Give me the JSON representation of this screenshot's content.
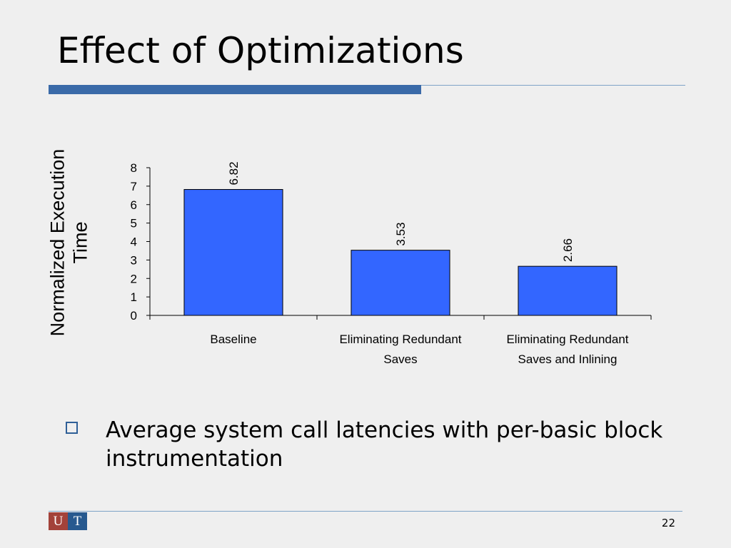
{
  "slide": {
    "title": "Effect of Optimizations",
    "bullet": "Average system call latencies with per-basic block instrumentation",
    "page_number": "22",
    "logo_left": "U",
    "logo_right": "T",
    "colors": {
      "accent_rule": "#3a6aa8",
      "thin_rule": "#7fa3c7",
      "bullet_border": "#2f5f97",
      "logo_left": "#a3423a",
      "logo_right": "#27598f"
    }
  },
  "chart_data": {
    "type": "bar",
    "categories": [
      [
        "Baseline"
      ],
      [
        "Eliminating Redundant",
        "Saves"
      ],
      [
        "Eliminating Redundant",
        "Saves and Inlining"
      ]
    ],
    "values": [
      6.82,
      3.53,
      2.66
    ],
    "data_labels": [
      "6.82",
      "3.53",
      "2.66"
    ],
    "ylabel": [
      "Normalized Execution",
      "Time"
    ],
    "ylim": [
      0,
      8
    ],
    "yticks": [
      0,
      1,
      2,
      3,
      4,
      5,
      6,
      7,
      8
    ],
    "grid": false,
    "legend": "none",
    "bar_color": "#3366ff"
  }
}
